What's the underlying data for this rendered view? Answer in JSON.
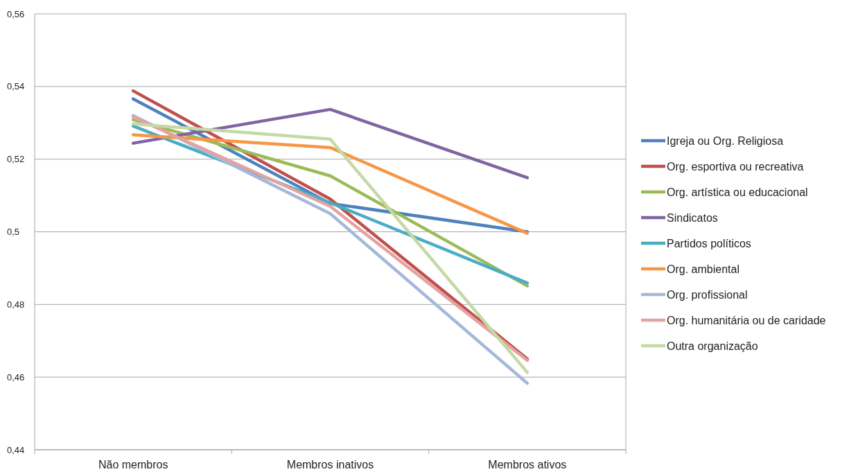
{
  "chart_data": {
    "type": "line",
    "categories": [
      "Não membros",
      "Membros inativos",
      "Membros ativos"
    ],
    "series": [
      {
        "name": "Igreja ou Org. Religiosa",
        "color": "#4f81bd",
        "values": [
          0.5366,
          0.5078,
          0.5
        ]
      },
      {
        "name": "Org. esportiva ou recreativa",
        "color": "#c0504d",
        "values": [
          0.5388,
          0.509,
          0.465
        ]
      },
      {
        "name": "Org. artística ou educacional",
        "color": "#9bbb59",
        "values": [
          0.5309,
          0.5154,
          0.4851
        ]
      },
      {
        "name": "Sindicatos",
        "color": "#8064a2",
        "values": [
          0.5244,
          0.5337,
          0.5149
        ]
      },
      {
        "name": "Partidos políticos",
        "color": "#4bacc6",
        "values": [
          0.5291,
          0.508,
          0.4859
        ]
      },
      {
        "name": "Org. ambiental",
        "color": "#f79646",
        "values": [
          0.5267,
          0.5232,
          0.4996
        ]
      },
      {
        "name": "Org. profissional",
        "color": "#a5b8da",
        "values": [
          0.532,
          0.505,
          0.4583
        ]
      },
      {
        "name": "Org. humanitária ou de caridade",
        "color": "#e3a3a1",
        "values": [
          0.5316,
          0.507,
          0.4646
        ]
      },
      {
        "name": "Outra organização",
        "color": "#c4d9a5",
        "values": [
          0.5297,
          0.5255,
          0.4613
        ]
      }
    ],
    "ylim": [
      0.44,
      0.56
    ],
    "yticks": [
      {
        "value": 0.44,
        "label": "0,44"
      },
      {
        "value": 0.46,
        "label": "0,46"
      },
      {
        "value": 0.48,
        "label": "0,48"
      },
      {
        "value": 0.5,
        "label": "0,5"
      },
      {
        "value": 0.52,
        "label": "0,52"
      },
      {
        "value": 0.54,
        "label": "0,54"
      },
      {
        "value": 0.56,
        "label": "0,56"
      }
    ],
    "grid": "y",
    "legend": "right",
    "marker": "none",
    "line_style": "solid"
  }
}
